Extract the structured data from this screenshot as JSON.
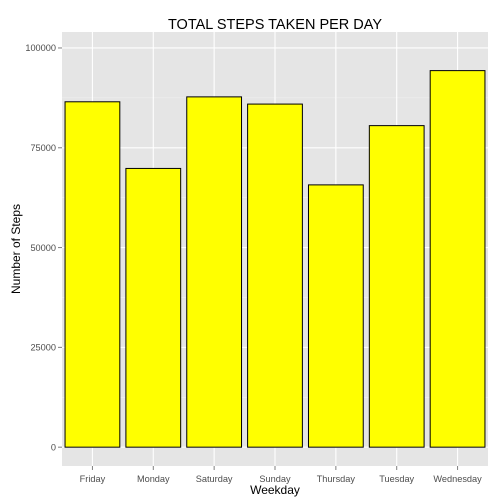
{
  "chart_data": {
    "type": "bar",
    "title": "TOTAL STEPS TAKEN PER DAY",
    "xlabel": "Weekday",
    "ylabel": "Number of Steps",
    "categories": [
      "Friday",
      "Monday",
      "Saturday",
      "Sunday",
      "Thursday",
      "Tuesday",
      "Wednesday"
    ],
    "values": [
      86518,
      69824,
      87748,
      85944,
      65702,
      80546,
      94326
    ],
    "ylim": [
      -4716,
      104000
    ],
    "yticks": [
      0,
      25000,
      50000,
      75000,
      100000
    ],
    "ytick_labels": [
      "0",
      "25000",
      "50000",
      "75000",
      "100000"
    ],
    "grid": true,
    "legend": "none",
    "colors": {
      "bar_fill": "#FFFF00",
      "bar_stroke": "#000000",
      "panel_background": "#E5E5E5",
      "grid_major": "#FFFFFF",
      "grid_minor": "#F2F2F2",
      "tick_text": "#4D4D4D"
    }
  }
}
